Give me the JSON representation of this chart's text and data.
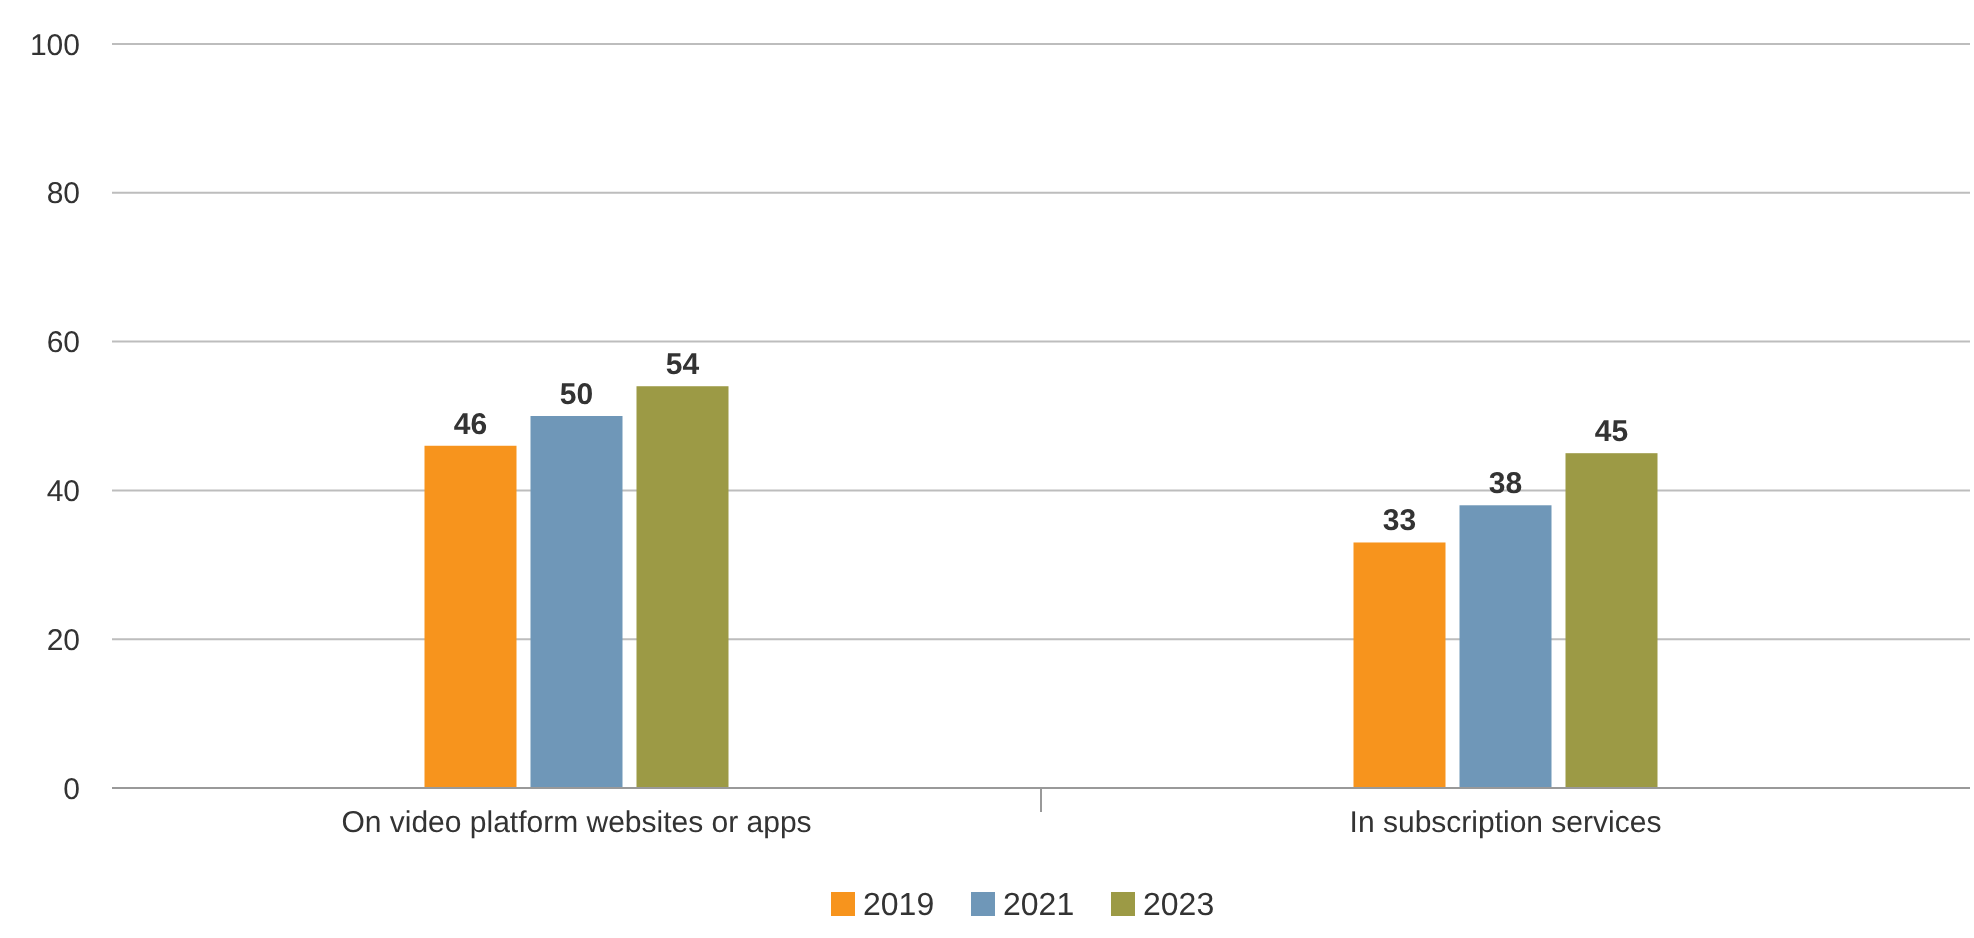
{
  "chart_data": {
    "type": "bar",
    "categories": [
      "On video platform websites or apps",
      "In subscription services"
    ],
    "series": [
      {
        "name": "2019",
        "color": "#f7941d",
        "values": [
          46,
          33
        ]
      },
      {
        "name": "2021",
        "color": "#6f97b8",
        "values": [
          50,
          38
        ]
      },
      {
        "name": "2023",
        "color": "#9c9a45",
        "values": [
          54,
          45
        ]
      }
    ],
    "ylim": [
      0,
      100
    ],
    "yticks": [
      0,
      20,
      40,
      60,
      80,
      100
    ],
    "grid": "y",
    "legend": "bottom",
    "data_labels": true
  }
}
